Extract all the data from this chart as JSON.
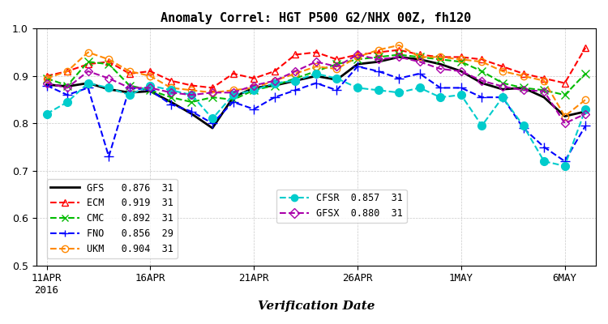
{
  "title": "Anomaly Correl: HGT P500 G2/NHX 00Z, fh120",
  "xlabel": "Verification Date",
  "ylabel": "",
  "ylim": [
    0.5,
    1.0
  ],
  "yticks": [
    0.5,
    0.6,
    0.7,
    0.8,
    0.9,
    1.0
  ],
  "xtick_labels": [
    "11APR\n2016",
    "16APR",
    "21APR",
    "26APR",
    "1MAY",
    "6MAY"
  ],
  "xtick_positions": [
    0,
    5,
    10,
    15,
    20,
    25
  ],
  "n_points": 27,
  "series": {
    "GFS": {
      "color": "#000000",
      "linestyle": "-",
      "marker": null,
      "linewidth": 2.0,
      "markersize": 0,
      "label": "GFS  0.876  31",
      "score": "0.876",
      "n": "31",
      "values": [
        0.882,
        0.878,
        0.885,
        0.872,
        0.865,
        0.868,
        0.845,
        0.82,
        0.79,
        0.855,
        0.875,
        0.88,
        0.89,
        0.9,
        0.892,
        0.925,
        0.93,
        0.94,
        0.935,
        0.925,
        0.91,
        0.885,
        0.872,
        0.875,
        0.855,
        0.815,
        0.825
      ]
    },
    "ECM": {
      "color": "#ff0000",
      "linestyle": "--",
      "marker": "^",
      "linewidth": 1.5,
      "markersize": 6,
      "label": "ECM  0.919  31",
      "score": "0.919",
      "n": "31",
      "values": [
        0.9,
        0.91,
        0.925,
        0.93,
        0.905,
        0.91,
        0.89,
        0.88,
        0.875,
        0.905,
        0.895,
        0.91,
        0.945,
        0.95,
        0.935,
        0.945,
        0.95,
        0.955,
        0.945,
        0.94,
        0.94,
        0.935,
        0.92,
        0.905,
        0.895,
        0.885,
        0.96
      ]
    },
    "CMC": {
      "color": "#00bb00",
      "linestyle": "--",
      "marker": "x",
      "linewidth": 1.5,
      "markersize": 7,
      "label": "CMC  0.892  31",
      "score": "0.892",
      "n": "31",
      "values": [
        0.895,
        0.88,
        0.93,
        0.925,
        0.88,
        0.87,
        0.855,
        0.845,
        0.855,
        0.85,
        0.87,
        0.88,
        0.895,
        0.91,
        0.925,
        0.935,
        0.94,
        0.945,
        0.94,
        0.935,
        0.93,
        0.91,
        0.885,
        0.875,
        0.87,
        0.86,
        0.905
      ]
    },
    "FNO": {
      "color": "#0000ff",
      "linestyle": "--",
      "marker": "+",
      "linewidth": 1.5,
      "markersize": 8,
      "label": "FNO  0.856  29",
      "score": "0.856",
      "n": "29",
      "values": [
        0.88,
        0.86,
        0.875,
        0.73,
        0.875,
        0.87,
        0.84,
        0.825,
        0.8,
        0.845,
        0.83,
        0.855,
        0.87,
        0.885,
        0.87,
        0.92,
        0.91,
        0.895,
        0.905,
        0.875,
        0.875,
        0.855,
        0.855,
        0.79,
        0.75,
        0.72,
        0.795
      ]
    },
    "UKM": {
      "color": "#ff8800",
      "linestyle": "--",
      "marker": "o",
      "linewidth": 1.5,
      "markersize": 6,
      "label": "UKM  0.904  31",
      "score": "0.904",
      "n": "31",
      "values": [
        0.895,
        0.91,
        0.95,
        0.935,
        0.91,
        0.9,
        0.875,
        0.87,
        0.865,
        0.87,
        0.875,
        0.89,
        0.905,
        0.92,
        0.915,
        0.94,
        0.955,
        0.965,
        0.94,
        0.94,
        0.935,
        0.93,
        0.91,
        0.9,
        0.89,
        0.815,
        0.85
      ]
    },
    "CFSR": {
      "color": "#00cccc",
      "linestyle": "--",
      "marker": "o",
      "linewidth": 1.5,
      "markersize": 7,
      "label": "CFSR  0.857  31",
      "score": "0.857",
      "n": "31",
      "values": [
        0.82,
        0.845,
        0.885,
        0.875,
        0.86,
        0.88,
        0.87,
        0.86,
        0.81,
        0.86,
        0.87,
        0.885,
        0.89,
        0.905,
        0.895,
        0.875,
        0.87,
        0.865,
        0.875,
        0.855,
        0.86,
        0.795,
        0.855,
        0.795,
        0.72,
        0.71,
        0.83
      ]
    },
    "GFSX": {
      "color": "#aa00aa",
      "linestyle": "--",
      "marker": "D",
      "linewidth": 1.5,
      "markersize": 5,
      "label": "GFSX  0.880  31",
      "score": "0.880",
      "n": "31",
      "values": [
        0.885,
        0.875,
        0.91,
        0.895,
        0.875,
        0.875,
        0.865,
        0.86,
        0.865,
        0.865,
        0.88,
        0.89,
        0.91,
        0.93,
        0.92,
        0.945,
        0.935,
        0.94,
        0.93,
        0.915,
        0.91,
        0.89,
        0.878,
        0.87,
        0.868,
        0.8,
        0.82
      ]
    }
  }
}
